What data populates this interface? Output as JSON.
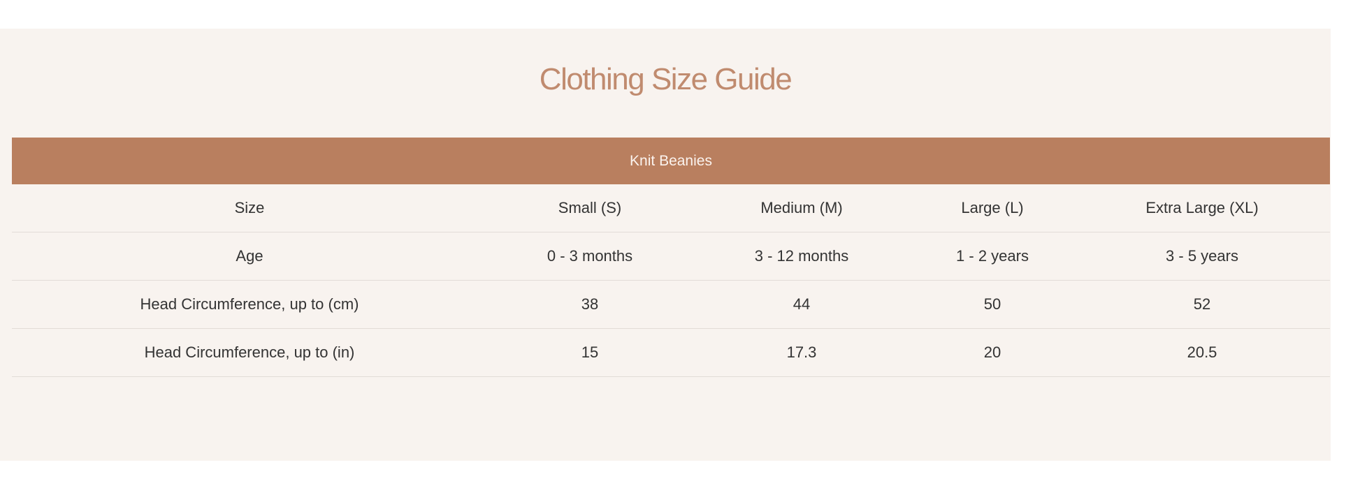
{
  "title": "Clothing Size Guide",
  "colors": {
    "accent": "#b97f5f",
    "title": "#c08b6f",
    "background": "#f8f3ef"
  },
  "table": {
    "group_header": "Knit Beanies",
    "rows": [
      [
        "Size",
        "Small (S)",
        "Medium (M)",
        "Large (L)",
        "Extra Large (XL)"
      ],
      [
        "Age",
        "0 - 3 months",
        "3 - 12 months",
        "1 - 2 years",
        "3 - 5 years"
      ],
      [
        "Head Circumference, up to (cm)",
        "38",
        "44",
        "50",
        "52"
      ],
      [
        "Head Circumference, up to (in)",
        "15",
        "17.3",
        "20",
        "20.5"
      ]
    ]
  }
}
